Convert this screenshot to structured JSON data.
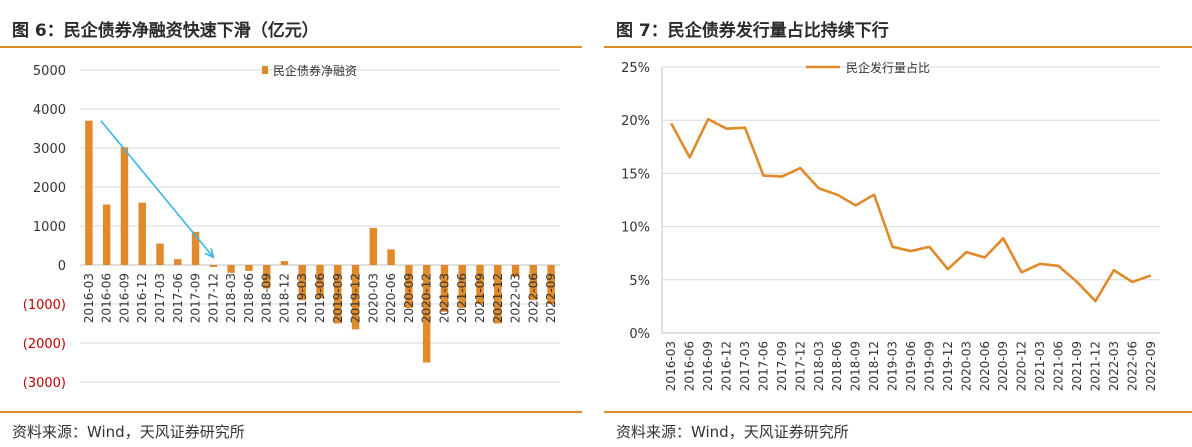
{
  "panels": [
    {
      "title": "图 6：民企债券净融资快速下滑（亿元）",
      "source": "资料来源：Wind，天风证券研究所"
    },
    {
      "title": "图 7：民企债券发行量占比持续下行",
      "source": "资料来源：Wind，天风证券研究所"
    }
  ],
  "chart_data": [
    {
      "type": "bar",
      "title": "",
      "xlabel": "",
      "ylabel": "",
      "legend": {
        "position": "top-center",
        "entries": [
          "民企债券净融资"
        ]
      },
      "categories": [
        "2016-03",
        "2016-06",
        "2016-09",
        "2016-12",
        "2017-03",
        "2017-06",
        "2017-09",
        "2017-12",
        "2018-03",
        "2018-06",
        "2018-09",
        "2018-12",
        "2019-03",
        "2019-06",
        "2019-09",
        "2019-12",
        "2020-03",
        "2020-06",
        "2020-09",
        "2020-12",
        "2021-03",
        "2021-06",
        "2021-09",
        "2021-12",
        "2022-03",
        "2022-06",
        "2022-09"
      ],
      "series": [
        {
          "name": "民企债券净融资",
          "color": "#e08a2b",
          "values": [
            3700,
            1550,
            3020,
            1600,
            550,
            150,
            850,
            -50,
            -200,
            -150,
            -600,
            100,
            -900,
            -850,
            -1500,
            -1650,
            950,
            400,
            -1100,
            -2500,
            -1200,
            -1100,
            -1000,
            -1500,
            -300,
            -900,
            -1000
          ]
        }
      ],
      "ylim": [
        -3000,
        5000
      ],
      "yticks": [
        {
          "value": 5000,
          "label": "5000",
          "color": "#333333"
        },
        {
          "value": 4000,
          "label": "4000",
          "color": "#333333"
        },
        {
          "value": 3000,
          "label": "3000",
          "color": "#333333"
        },
        {
          "value": 2000,
          "label": "2000",
          "color": "#333333"
        },
        {
          "value": 1000,
          "label": "1000",
          "color": "#333333"
        },
        {
          "value": 0,
          "label": "0",
          "color": "#333333"
        },
        {
          "value": -1000,
          "label": "(1000)",
          "color": "#c00000"
        },
        {
          "value": -2000,
          "label": "(2000)",
          "color": "#c00000"
        },
        {
          "value": -3000,
          "label": "(3000)",
          "color": "#c00000"
        }
      ],
      "grid": true,
      "annotation": {
        "type": "arrow",
        "color": "#38b6e8",
        "from": [
          "2016-03",
          3700
        ],
        "to": [
          "2017-12",
          200
        ]
      }
    },
    {
      "type": "line",
      "title": "",
      "xlabel": "",
      "ylabel": "",
      "legend": {
        "position": "top-center",
        "entries": [
          "民企发行量占比"
        ]
      },
      "x": [
        "2016-03",
        "2016-06",
        "2016-09",
        "2016-12",
        "2017-03",
        "2017-06",
        "2017-09",
        "2017-12",
        "2018-03",
        "2018-06",
        "2018-09",
        "2018-12",
        "2019-03",
        "2019-06",
        "2019-09",
        "2019-12",
        "2020-03",
        "2020-06",
        "2020-09",
        "2020-12",
        "2021-03",
        "2021-06",
        "2021-09",
        "2021-12",
        "2022-03",
        "2022-06",
        "2022-09"
      ],
      "series": [
        {
          "name": "民企发行量占比",
          "color": "#e08a2b",
          "values": [
            19.7,
            16.5,
            20.1,
            19.2,
            19.3,
            14.8,
            14.7,
            15.5,
            13.6,
            13.0,
            12.0,
            13.0,
            8.1,
            7.7,
            8.1,
            6.0,
            7.6,
            7.1,
            8.9,
            5.7,
            6.5,
            6.3,
            4.8,
            3.0,
            5.9,
            4.8,
            5.4
          ]
        }
      ],
      "ylim": [
        0,
        25
      ],
      "yticks": [
        {
          "value": 25,
          "label": "25%"
        },
        {
          "value": 20,
          "label": "20%"
        },
        {
          "value": 15,
          "label": "15%"
        },
        {
          "value": 10,
          "label": "10%"
        },
        {
          "value": 5,
          "label": "5%"
        },
        {
          "value": 0,
          "label": "0%"
        }
      ],
      "grid": true
    }
  ]
}
